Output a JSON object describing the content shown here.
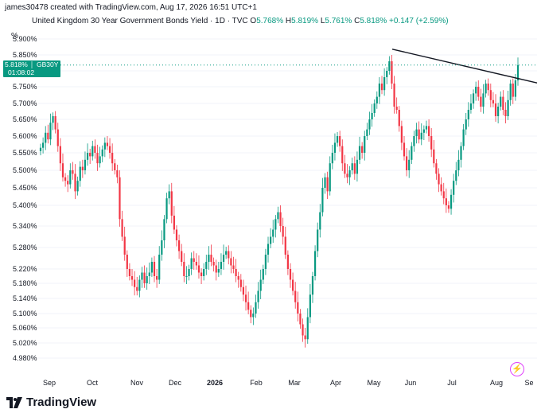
{
  "header": {
    "caption": "james30478 created with TradingView.com, Aug 17, 2026 16:51 UTC+1"
  },
  "legend": {
    "title": "United Kingdom 30 Year Government Bonds Yield · 1D · TVC",
    "open_label": "O",
    "open": "5.768%",
    "high_label": "H",
    "high": "5.819%",
    "low_label": "L",
    "low": "5.761%",
    "close_label": "C",
    "close": "5.818%",
    "change": "+0.147 (+2.59%)"
  },
  "price_tag": {
    "value": "5.818%",
    "symbol": "GB30Y",
    "countdown": "01:08:02"
  },
  "footer": {
    "brand": "TradingView",
    "logo_icon": "tradingview-logo-icon",
    "bolt_icon": "lightning-bolt-icon"
  },
  "colors": {
    "up": "#089981",
    "down": "#f23645",
    "trendline": "#131722",
    "grid": "#f0f3fa",
    "accent": "#e040fb"
  },
  "chart_data": {
    "type": "candlestick",
    "title": "United Kingdom 30 Year Government Bonds Yield",
    "ylabel": "%",
    "y_tick_labels": [
      "5.900%",
      "5.850%",
      "5.800%",
      "5.750%",
      "5.700%",
      "5.650%",
      "5.600%",
      "5.550%",
      "5.500%",
      "5.450%",
      "5.400%",
      "5.340%",
      "5.280%",
      "5.220%",
      "5.180%",
      "5.140%",
      "5.100%",
      "5.060%",
      "5.020%",
      "4.980%"
    ],
    "x_tick_labels": [
      "Sep",
      "Oct",
      "Nov",
      "Dec",
      "2026",
      "Feb",
      "Mar",
      "Apr",
      "May",
      "Jun",
      "Jul",
      "Aug",
      "Se"
    ],
    "series": [
      {
        "name": "GB30Y",
        "closes": [
          5.565,
          5.58,
          5.61,
          5.59,
          5.64,
          5.66,
          5.62,
          5.57,
          5.52,
          5.48,
          5.47,
          5.46,
          5.5,
          5.49,
          5.44,
          5.47,
          5.51,
          5.5,
          5.53,
          5.55,
          5.54,
          5.57,
          5.55,
          5.52,
          5.54,
          5.56,
          5.58,
          5.57,
          5.55,
          5.52,
          5.5,
          5.48,
          5.36,
          5.31,
          5.26,
          5.22,
          5.2,
          5.19,
          5.17,
          5.16,
          5.19,
          5.21,
          5.18,
          5.2,
          5.21,
          5.24,
          5.2,
          5.19,
          5.26,
          5.3,
          5.36,
          5.42,
          5.44,
          5.37,
          5.33,
          5.3,
          5.27,
          5.24,
          5.2,
          5.2,
          5.22,
          5.25,
          5.24,
          5.23,
          5.21,
          5.2,
          5.22,
          5.24,
          5.26,
          5.24,
          5.23,
          5.21,
          5.22,
          5.24,
          5.26,
          5.27,
          5.25,
          5.23,
          5.22,
          5.2,
          5.19,
          5.17,
          5.15,
          5.13,
          5.11,
          5.09,
          5.1,
          5.13,
          5.16,
          5.19,
          5.22,
          5.26,
          5.29,
          5.31,
          5.33,
          5.36,
          5.38,
          5.34,
          5.31,
          5.26,
          5.22,
          5.19,
          5.16,
          5.13,
          5.1,
          5.07,
          5.04,
          5.03,
          5.09,
          5.15,
          5.2,
          5.27,
          5.33,
          5.38,
          5.45,
          5.48,
          5.44,
          5.52,
          5.55,
          5.58,
          5.6,
          5.57,
          5.52,
          5.49,
          5.48,
          5.5,
          5.52,
          5.49,
          5.53,
          5.57,
          5.55,
          5.6,
          5.62,
          5.65,
          5.67,
          5.7,
          5.72,
          5.76,
          5.74,
          5.78,
          5.8,
          5.83,
          5.76,
          5.69,
          5.68,
          5.63,
          5.58,
          5.54,
          5.5,
          5.53,
          5.57,
          5.6,
          5.62,
          5.59,
          5.61,
          5.62,
          5.63,
          5.6,
          5.56,
          5.52,
          5.49,
          5.46,
          5.44,
          5.42,
          5.4,
          5.39,
          5.43,
          5.47,
          5.5,
          5.53,
          5.57,
          5.62,
          5.65,
          5.68,
          5.7,
          5.73,
          5.75,
          5.72,
          5.69,
          5.73,
          5.76,
          5.74,
          5.71,
          5.7,
          5.66,
          5.69,
          5.72,
          5.68,
          5.66,
          5.71,
          5.76,
          5.72,
          5.77,
          5.818
        ]
      }
    ],
    "trendline": [
      {
        "x": "May peak",
        "y": 5.868
      },
      {
        "x": "right edge",
        "y": 5.762
      }
    ],
    "last_value": 5.818
  }
}
